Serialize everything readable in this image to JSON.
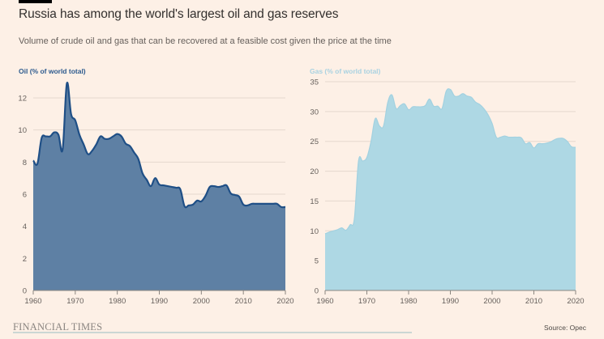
{
  "header": {
    "title": "Russia has among the world's largest oil and gas reserves",
    "subtitle": "Volume of crude oil and gas that can be recovered at a feasible cost given the price at the time"
  },
  "footer": {
    "brand": "FINANCIAL TIMES",
    "source": "Source: Opec"
  },
  "colors": {
    "background": "#fdf0e6",
    "oil_fill": "#5e80a4",
    "oil_line": "#1f4f86",
    "oil_label": "#2c5a8e",
    "gas_fill": "#aed8e4",
    "gas_line": "#a2d1e0",
    "gas_label": "#a9d2e1",
    "grid": "#e5d8ce"
  },
  "chart_data": [
    {
      "type": "area",
      "title": "Oil (% of world total)",
      "xlabel": "",
      "ylabel": "",
      "xlim": [
        1960,
        2020
      ],
      "ylim": [
        0,
        13
      ],
      "xticks": [
        1960,
        1970,
        1980,
        1990,
        2000,
        2010,
        2020
      ],
      "yticks": [
        0,
        2,
        4,
        6,
        8,
        10,
        12
      ],
      "grid": true,
      "x": [
        1960,
        1961,
        1962,
        1963,
        1964,
        1965,
        1966,
        1967,
        1968,
        1969,
        1970,
        1971,
        1972,
        1973,
        1974,
        1975,
        1976,
        1977,
        1978,
        1979,
        1980,
        1981,
        1982,
        1983,
        1984,
        1985,
        1986,
        1987,
        1988,
        1989,
        1990,
        1991,
        1992,
        1993,
        1994,
        1995,
        1996,
        1997,
        1998,
        1999,
        2000,
        2001,
        2002,
        2003,
        2004,
        2005,
        2006,
        2007,
        2008,
        2009,
        2010,
        2011,
        2012,
        2013,
        2014,
        2015,
        2016,
        2017,
        2018,
        2019,
        2020
      ],
      "values": [
        8.1,
        7.9,
        9.5,
        9.6,
        9.6,
        9.85,
        9.7,
        8.8,
        12.9,
        11.0,
        10.6,
        9.7,
        9.1,
        8.5,
        8.7,
        9.1,
        9.6,
        9.45,
        9.45,
        9.6,
        9.75,
        9.6,
        9.15,
        9.0,
        8.6,
        8.2,
        7.3,
        6.9,
        6.5,
        7.0,
        6.6,
        6.55,
        6.5,
        6.45,
        6.4,
        6.3,
        5.25,
        5.3,
        5.35,
        5.6,
        5.55,
        5.9,
        6.45,
        6.5,
        6.45,
        6.5,
        6.55,
        6.05,
        5.95,
        5.85,
        5.35,
        5.3,
        5.4,
        5.4,
        5.4,
        5.4,
        5.4,
        5.4,
        5.4,
        5.2,
        5.2
      ]
    },
    {
      "type": "area",
      "title": "Gas (% of world total)",
      "xlabel": "",
      "ylabel": "",
      "xlim": [
        1960,
        2020
      ],
      "ylim": [
        0,
        35
      ],
      "xticks": [
        1960,
        1970,
        1980,
        1990,
        2000,
        2010,
        2020
      ],
      "yticks": [
        0,
        5,
        10,
        15,
        20,
        25,
        30,
        35
      ],
      "grid": true,
      "x": [
        1960,
        1961,
        1962,
        1963,
        1964,
        1965,
        1966,
        1967,
        1968,
        1969,
        1970,
        1971,
        1972,
        1973,
        1974,
        1975,
        1976,
        1977,
        1978,
        1979,
        1980,
        1981,
        1982,
        1983,
        1984,
        1985,
        1986,
        1987,
        1988,
        1989,
        1990,
        1991,
        1992,
        1993,
        1994,
        1995,
        1996,
        1997,
        1998,
        1999,
        2000,
        2001,
        2002,
        2003,
        2004,
        2005,
        2006,
        2007,
        2008,
        2009,
        2010,
        2011,
        2012,
        2013,
        2014,
        2015,
        2016,
        2017,
        2018,
        2019,
        2020
      ],
      "values": [
        9.5,
        9.8,
        10.0,
        10.2,
        10.5,
        10.1,
        11.0,
        12.0,
        21.7,
        21.7,
        22.3,
        25.0,
        28.8,
        27.6,
        27.6,
        31.5,
        32.8,
        30.5,
        31.0,
        31.3,
        30.3,
        30.8,
        30.8,
        30.8,
        31.0,
        32.1,
        30.9,
        30.9,
        30.5,
        33.4,
        33.7,
        32.6,
        32.6,
        33.0,
        32.6,
        32.4,
        31.6,
        31.2,
        30.5,
        29.5,
        28.0,
        25.7,
        25.7,
        25.9,
        25.7,
        25.7,
        25.7,
        25.6,
        24.6,
        24.8,
        23.9,
        24.6,
        24.6,
        24.7,
        24.9,
        25.3,
        25.5,
        25.5,
        25.0,
        24.1,
        24.0
      ]
    }
  ]
}
